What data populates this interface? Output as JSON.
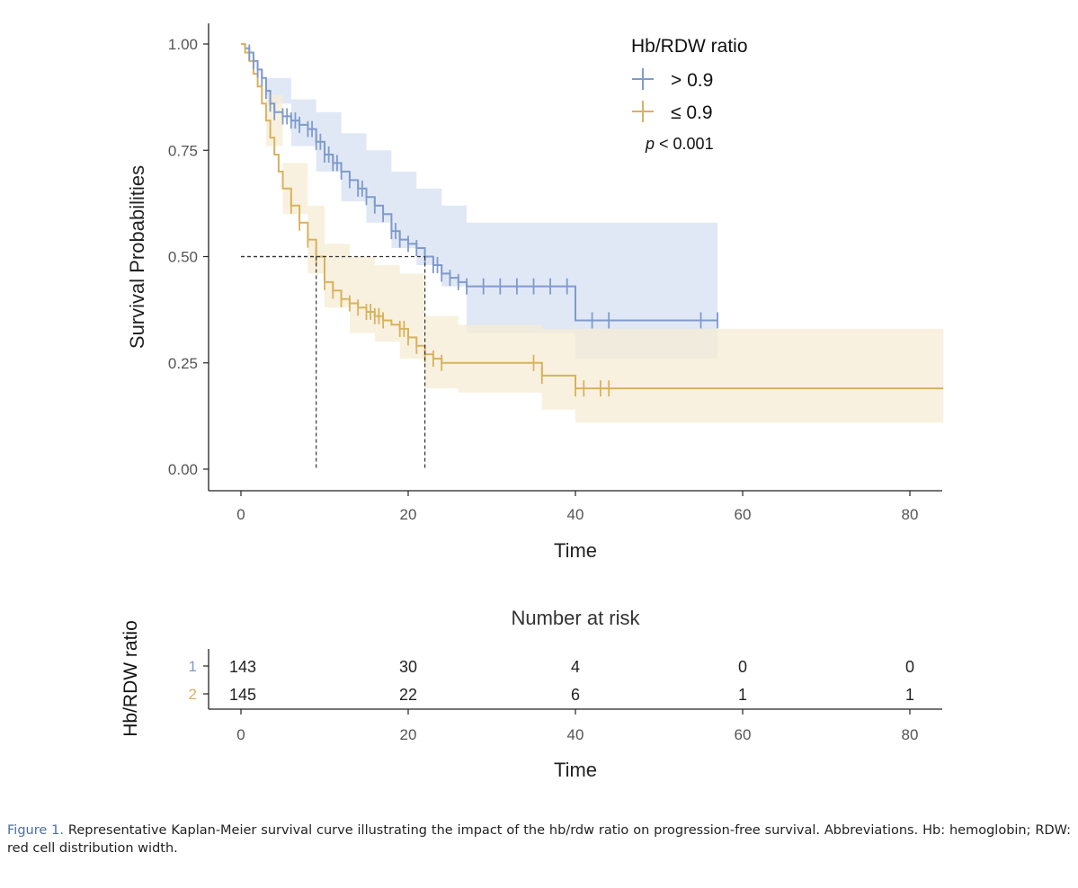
{
  "chart_data": {
    "type": "line",
    "subtype": "kaplan-meier",
    "ylabel": "Survival Probabilities",
    "xlabel": "Time",
    "xlim": [
      0,
      84
    ],
    "ylim": [
      0,
      1
    ],
    "x_ticks": [
      "0",
      "20",
      "40",
      "60",
      "80"
    ],
    "y_ticks": [
      "0.00",
      "0.25",
      "0.50",
      "0.75",
      "1.00"
    ],
    "legend": {
      "title": "Hb/RDW ratio",
      "entries": [
        "> 0.9",
        "≤ 0.9"
      ],
      "pvalue_prefix": "p",
      "pvalue_rest": " < 0.001",
      "placement": "top-right"
    },
    "median_lines": [
      {
        "x": 9,
        "y": 0.5
      },
      {
        "x": 22,
        "y": 0.5
      }
    ],
    "series": [
      {
        "name": "> 0.9",
        "color": "#7f9bcc",
        "band_color": "#dbe4f3",
        "steps": [
          [
            0,
            1.0
          ],
          [
            0.5,
            0.99
          ],
          [
            1,
            0.98
          ],
          [
            1.5,
            0.96
          ],
          [
            2,
            0.94
          ],
          [
            2.5,
            0.92
          ],
          [
            3,
            0.89
          ],
          [
            3.5,
            0.86
          ],
          [
            4,
            0.84
          ],
          [
            5,
            0.83
          ],
          [
            6,
            0.82
          ],
          [
            7,
            0.81
          ],
          [
            8,
            0.8
          ],
          [
            9,
            0.77
          ],
          [
            10,
            0.74
          ],
          [
            11,
            0.72
          ],
          [
            12,
            0.7
          ],
          [
            13,
            0.68
          ],
          [
            14,
            0.66
          ],
          [
            15,
            0.64
          ],
          [
            16,
            0.62
          ],
          [
            17,
            0.6
          ],
          [
            18,
            0.56
          ],
          [
            19,
            0.54
          ],
          [
            20,
            0.53
          ],
          [
            21,
            0.52
          ],
          [
            22,
            0.5
          ],
          [
            23,
            0.48
          ],
          [
            24,
            0.46
          ],
          [
            25,
            0.45
          ],
          [
            26,
            0.44
          ],
          [
            27,
            0.43
          ],
          [
            40,
            0.35
          ],
          [
            57,
            0.35
          ]
        ],
        "band": [
          [
            0,
            1.0,
            1.0
          ],
          [
            3,
            0.92,
            0.86
          ],
          [
            6,
            0.87,
            0.76
          ],
          [
            9,
            0.84,
            0.7
          ],
          [
            12,
            0.79,
            0.63
          ],
          [
            15,
            0.75,
            0.58
          ],
          [
            18,
            0.7,
            0.52
          ],
          [
            21,
            0.66,
            0.48
          ],
          [
            24,
            0.62,
            0.43
          ],
          [
            27,
            0.58,
            0.32
          ],
          [
            40,
            0.58,
            0.26
          ],
          [
            57,
            0.59,
            0.21
          ]
        ],
        "censor_x": [
          1,
          1.5,
          2,
          2.5,
          3,
          3.5,
          4,
          5,
          5.5,
          6,
          6.5,
          7,
          8,
          8.5,
          9,
          9.5,
          10,
          10.5,
          11,
          11.5,
          12,
          13,
          14,
          14.5,
          15,
          16,
          17,
          18,
          18.5,
          19,
          20,
          21,
          22,
          23,
          23.5,
          24,
          25,
          26,
          27,
          29,
          31,
          33,
          35,
          37,
          39,
          42,
          44,
          55,
          57
        ]
      },
      {
        "name": "≤ 0.9",
        "color": "#d9b25e",
        "band_color": "#f5ecd4",
        "steps": [
          [
            0,
            1.0
          ],
          [
            0.5,
            0.98
          ],
          [
            1,
            0.96
          ],
          [
            1.5,
            0.93
          ],
          [
            2,
            0.9
          ],
          [
            2.5,
            0.86
          ],
          [
            3,
            0.82
          ],
          [
            3.5,
            0.78
          ],
          [
            4,
            0.74
          ],
          [
            4.5,
            0.7
          ],
          [
            5,
            0.66
          ],
          [
            6,
            0.62
          ],
          [
            7,
            0.58
          ],
          [
            8,
            0.54
          ],
          [
            9,
            0.5
          ],
          [
            10,
            0.44
          ],
          [
            11,
            0.42
          ],
          [
            12,
            0.4
          ],
          [
            13,
            0.39
          ],
          [
            14,
            0.38
          ],
          [
            15,
            0.37
          ],
          [
            16,
            0.36
          ],
          [
            17,
            0.35
          ],
          [
            18,
            0.34
          ],
          [
            19,
            0.33
          ],
          [
            20,
            0.31
          ],
          [
            21,
            0.29
          ],
          [
            22,
            0.27
          ],
          [
            23,
            0.26
          ],
          [
            24,
            0.25
          ],
          [
            36,
            0.22
          ],
          [
            40,
            0.19
          ],
          [
            84,
            0.19
          ]
        ],
        "band": [
          [
            0,
            1.0,
            1.0
          ],
          [
            3,
            0.88,
            0.76
          ],
          [
            5,
            0.72,
            0.6
          ],
          [
            8,
            0.62,
            0.46
          ],
          [
            10,
            0.53,
            0.38
          ],
          [
            13,
            0.5,
            0.32
          ],
          [
            16,
            0.48,
            0.3
          ],
          [
            19,
            0.46,
            0.26
          ],
          [
            22,
            0.36,
            0.19
          ],
          [
            26,
            0.34,
            0.18
          ],
          [
            36,
            0.33,
            0.14
          ],
          [
            40,
            0.33,
            0.11
          ],
          [
            84,
            0.33,
            0.11
          ]
        ],
        "censor_x": [
          6,
          7,
          8,
          9,
          10,
          11,
          12,
          13,
          14,
          15,
          15.5,
          16,
          16.5,
          17,
          19,
          19.5,
          20,
          21,
          22,
          23,
          24,
          35,
          36,
          40,
          41,
          43,
          44
        ]
      }
    ],
    "risk_table": {
      "title": "Number at risk",
      "ylabel": "Hb/RDW ratio",
      "xlabel": "Time",
      "x_ticks": [
        "0",
        "20",
        "40",
        "60",
        "80"
      ],
      "row_labels": [
        "1",
        "2"
      ],
      "row_colors": [
        "#7f9bcc",
        "#d9b25e"
      ],
      "rows": [
        [
          "143",
          "30",
          "4",
          "0",
          "0"
        ],
        [
          "145",
          "22",
          "6",
          "1",
          "1"
        ]
      ]
    }
  },
  "caption": {
    "label": "Figure 1.",
    "text": " Representative Kaplan-Meier survival curve illustrating the impact of the hb/rdw ratio on progression-free survival. Abbreviations. Hb: hemoglobin; RDW: red cell distribution width."
  }
}
